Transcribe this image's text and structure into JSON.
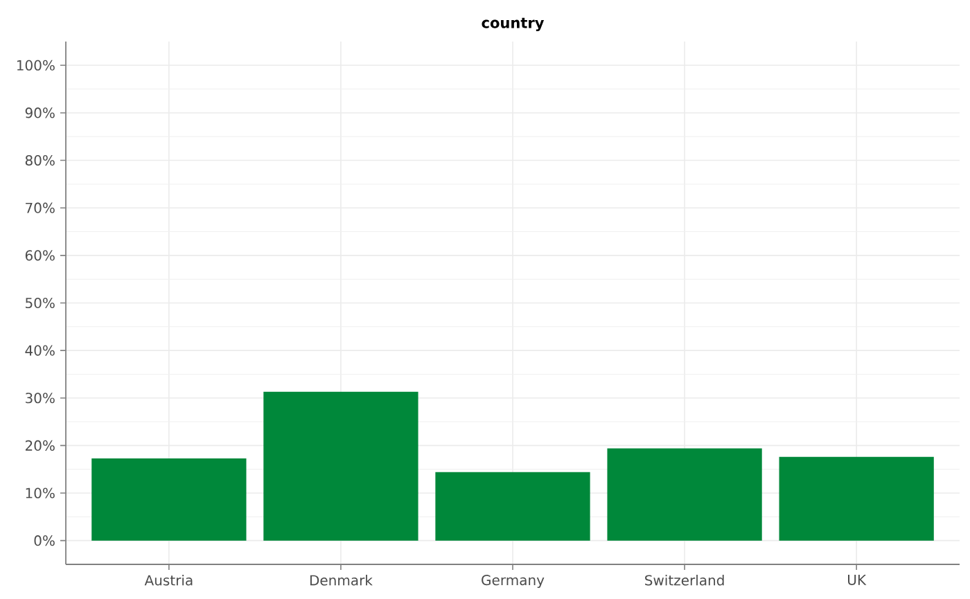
{
  "chart_data": {
    "type": "bar",
    "title": "country",
    "categories": [
      "Austria",
      "Denmark",
      "Germany",
      "Switzerland",
      "UK"
    ],
    "values": [
      17.3,
      31.3,
      14.4,
      19.4,
      17.6
    ],
    "color": "#00883a",
    "ylim": [
      -5,
      105
    ],
    "yticks": [
      {
        "value": 0,
        "label": "0%"
      },
      {
        "value": 10,
        "label": "10%"
      },
      {
        "value": 20,
        "label": "20%"
      },
      {
        "value": 30,
        "label": "30%"
      },
      {
        "value": 40,
        "label": "40%"
      },
      {
        "value": 50,
        "label": "50%"
      },
      {
        "value": 60,
        "label": "60%"
      },
      {
        "value": 70,
        "label": "70%"
      },
      {
        "value": 80,
        "label": "80%"
      },
      {
        "value": 90,
        "label": "90%"
      },
      {
        "value": 100,
        "label": "100%"
      }
    ],
    "grid": true
  }
}
